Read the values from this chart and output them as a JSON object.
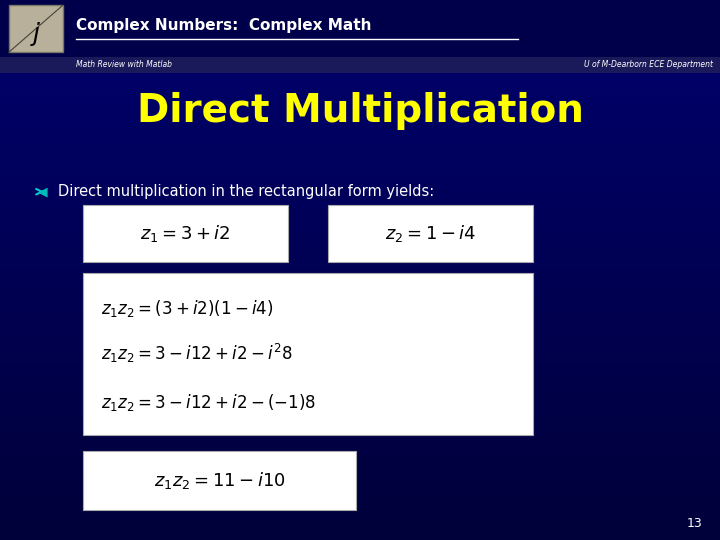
{
  "title": "Direct Multiplication",
  "title_color": "#FFFF00",
  "header_title": "Complex Numbers:  Complex Math",
  "header_subtitle_left": "Math Review with Matlab",
  "header_subtitle_right": "U of M-Dearborn ECE Department",
  "bullet_text": "Direct multiplication in the rectangular form yields:",
  "eq1": "$z_1 = 3 + i2$",
  "eq2": "$z_2 = 1 - i4$",
  "eq3": "$z_1 z_2 = (3 + i2)(1 - i4)$",
  "eq4": "$z_1 z_2 = 3 - i12 + i2 - i^2 8$",
  "eq5": "$z_1 z_2 = 3 - i12 + i2 - (-1)8$",
  "eq6": "$z_1 z_2 = 11 - i10$",
  "page_number": "13",
  "bg_dark": "#00003a",
  "bg_mid": "#00006e",
  "header_bg": "#00004a",
  "subbar_bg": "#1a1a5a",
  "box_face": "#ffffff",
  "box_edge": "#aaaaaa"
}
